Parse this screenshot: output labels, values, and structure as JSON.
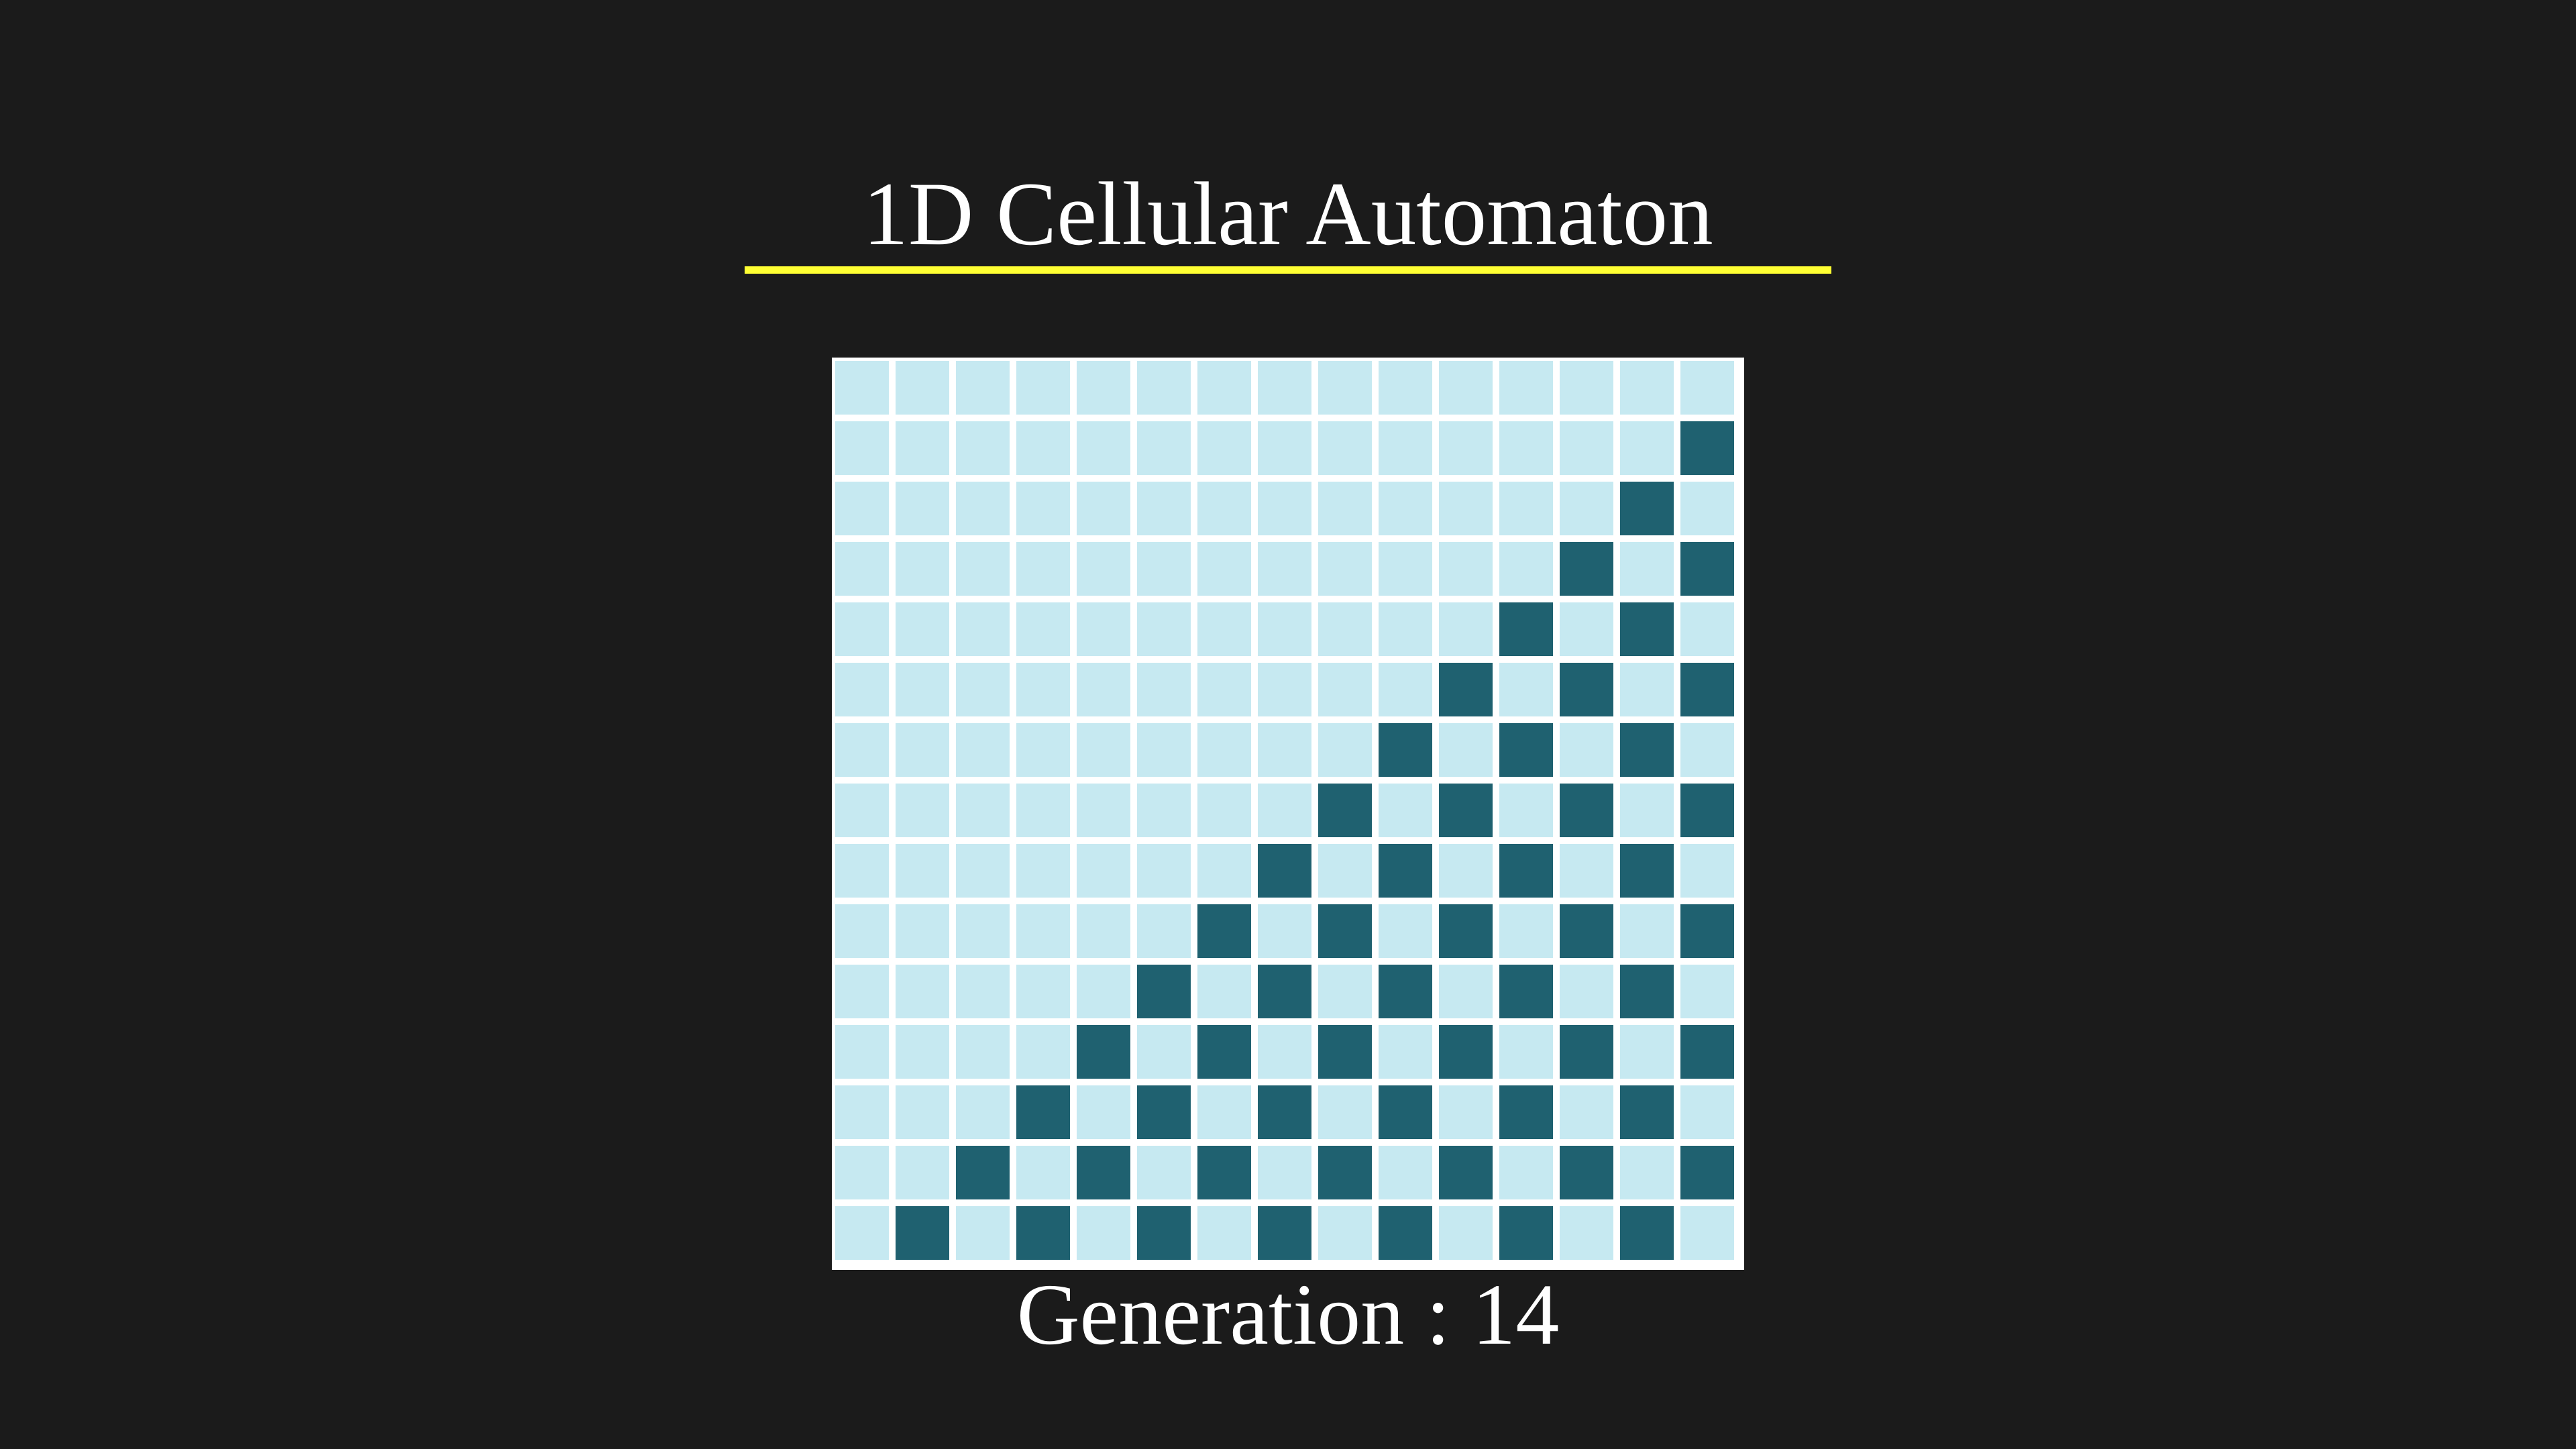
{
  "title": "1D Cellular Automaton",
  "generation": {
    "label": "Generation",
    "separator": " : ",
    "value": "14"
  },
  "colors": {
    "background": "#1b1b1b",
    "title_underline": "#ffff33",
    "cell_on": "#1f6170",
    "cell_off": "#c6e9f1",
    "grid_lines": "#ffffff"
  },
  "automaton": {
    "columns": 15,
    "rows": 15,
    "cells": [
      "000000000000000",
      "000000000000001",
      "000000000000010",
      "000000000000101",
      "000000000001010",
      "000000000010101",
      "000000000101010",
      "000000001010101",
      "000000010101010",
      "000000101010101",
      "000001010101010",
      "000010101010101",
      "000101010101010",
      "001010101010101",
      "010101010101010"
    ]
  }
}
